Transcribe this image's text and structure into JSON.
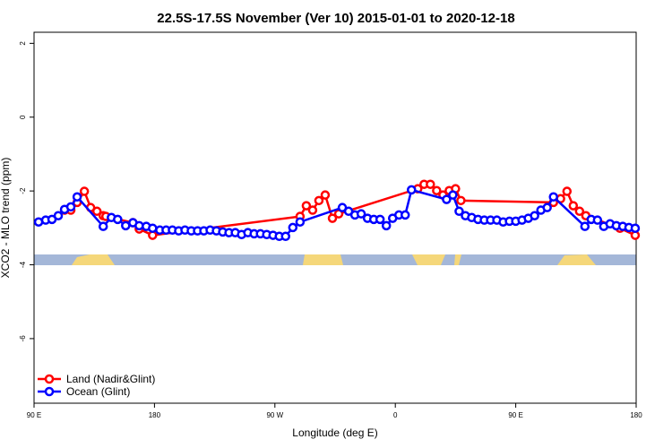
{
  "chart_data": {
    "type": "line",
    "title": "22.5S-17.5S November (Ver 10)   2015-01-01 to 2020-12-18",
    "x_label": "Longitude (deg E)",
    "y_label": "XCO2 - MLO trend (ppm)",
    "xlim": [
      90,
      540
    ],
    "ylim": [
      -7.75,
      2.3
    ],
    "xticks": [
      {
        "value": 90,
        "label": "90 E"
      },
      180,
      {
        "value": 270,
        "label": "90 W"
      },
      {
        "value": 360,
        "label": "0"
      },
      {
        "value": 450,
        "label": "90 E"
      },
      {
        "value": 540,
        "label": "180"
      }
    ],
    "yticks": [
      2,
      0,
      -2,
      -4,
      -6
    ],
    "legend": "bottom-left",
    "series": [
      {
        "name": "Land (Nadir&Glint)",
        "color": "#ff0000",
        "x": [
          112.8,
          117.5,
          122.2,
          127.6,
          132.3,
          137.0,
          141.7,
          143.7,
          163.9,
          168.6,
          178.6,
          288.8,
          293.5,
          298.2,
          302.9,
          307.6,
          313.0,
          317.7,
          376.8,
          381.5,
          386.2,
          390.9,
          395.6,
          400.3,
          405.0,
          409.0,
          478.2,
          483.5,
          488.3,
          493.0,
          497.7,
          502.4,
          527.9,
          539.3
        ],
        "values": [
          -2.52,
          -2.52,
          -2.31,
          -2.01,
          -2.45,
          -2.55,
          -2.67,
          -2.69,
          -2.86,
          -3.03,
          -3.2,
          -2.69,
          -2.4,
          -2.52,
          -2.26,
          -2.11,
          -2.74,
          -2.62,
          -1.94,
          -1.82,
          -1.82,
          -1.99,
          -2.11,
          -1.99,
          -1.94,
          -2.26,
          -2.31,
          -2.21,
          -2.01,
          -2.4,
          -2.55,
          -2.67,
          -3.01,
          -3.2
        ]
      },
      {
        "name": "Ocean (Glint)",
        "color": "#0000ff",
        "x": [
          93.4,
          98.7,
          103.4,
          108.1,
          112.8,
          117.5,
          122.2,
          141.7,
          147.8,
          152.5,
          158.5,
          163.9,
          168.6,
          173.9,
          178.6,
          184.0,
          188.7,
          193.4,
          198.1,
          202.8,
          207.5,
          212.2,
          216.9,
          221.6,
          226.3,
          231.0,
          235.7,
          240.4,
          245.1,
          249.8,
          254.5,
          259.2,
          263.9,
          268.6,
          273.3,
          278.0,
          283.4,
          288.8,
          320.4,
          325.1,
          329.8,
          334.5,
          339.2,
          343.9,
          348.6,
          353.3,
          358.0,
          362.7,
          367.4,
          372.1,
          398.3,
          403.0,
          407.7,
          412.4,
          417.1,
          421.8,
          426.5,
          431.2,
          435.9,
          440.6,
          445.3,
          450.0,
          454.7,
          459.4,
          464.1,
          468.8,
          473.5,
          478.2,
          501.7,
          506.4,
          511.1,
          515.8,
          520.5,
          525.2,
          530.0,
          534.6,
          539.3
        ],
        "values": [
          -2.84,
          -2.79,
          -2.77,
          -2.67,
          -2.5,
          -2.43,
          -2.16,
          -2.96,
          -2.72,
          -2.77,
          -2.94,
          -2.86,
          -2.94,
          -2.96,
          -3.01,
          -3.06,
          -3.06,
          -3.06,
          -3.08,
          -3.06,
          -3.08,
          -3.08,
          -3.08,
          -3.06,
          -3.08,
          -3.11,
          -3.13,
          -3.13,
          -3.18,
          -3.13,
          -3.16,
          -3.16,
          -3.18,
          -3.2,
          -3.23,
          -3.23,
          -2.99,
          -2.84,
          -2.45,
          -2.55,
          -2.65,
          -2.62,
          -2.74,
          -2.77,
          -2.77,
          -2.94,
          -2.74,
          -2.65,
          -2.65,
          -1.97,
          -2.23,
          -2.11,
          -2.55,
          -2.67,
          -2.72,
          -2.77,
          -2.79,
          -2.79,
          -2.79,
          -2.84,
          -2.82,
          -2.82,
          -2.79,
          -2.74,
          -2.67,
          -2.52,
          -2.45,
          -2.16,
          -2.96,
          -2.77,
          -2.79,
          -2.96,
          -2.89,
          -2.94,
          -2.96,
          -2.99,
          -3.01
        ]
      }
    ]
  }
}
